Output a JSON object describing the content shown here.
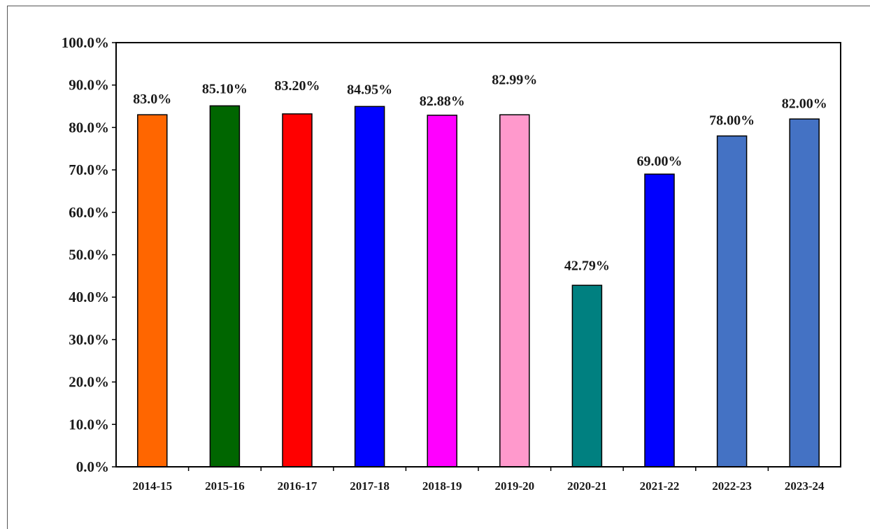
{
  "chart_data": {
    "type": "bar",
    "title": "",
    "xlabel": "",
    "ylabel": "",
    "ylim": [
      0,
      100
    ],
    "yticks": [
      "0.0%",
      "10.0%",
      "20.0%",
      "30.0%",
      "40.0%",
      "50.0%",
      "60.0%",
      "70.0%",
      "80.0%",
      "90.0%",
      "100.0%"
    ],
    "grid": false,
    "legend": "none",
    "categories": [
      "2014-15",
      "2015-16",
      "2016-17",
      "2017-18",
      "2018-19",
      "2019-20",
      "2020-21",
      "2021-22",
      "2022-23",
      "2023-24"
    ],
    "values": [
      83.0,
      85.1,
      83.2,
      84.95,
      82.88,
      82.99,
      42.79,
      69.0,
      78.0,
      82.0
    ],
    "data_labels": [
      "83.0%",
      "85.10%",
      "83.20%",
      "84.95%",
      "82.88%",
      "82.99%",
      "42.79%",
      "69.00%",
      "78.00%",
      "82.00%"
    ],
    "colors": [
      "#FF6600",
      "#006600",
      "#FF0000",
      "#0000FF",
      "#FF00FF",
      "#FF99CC",
      "#008080",
      "#0000FF",
      "#4472C4",
      "#4472C4"
    ]
  }
}
